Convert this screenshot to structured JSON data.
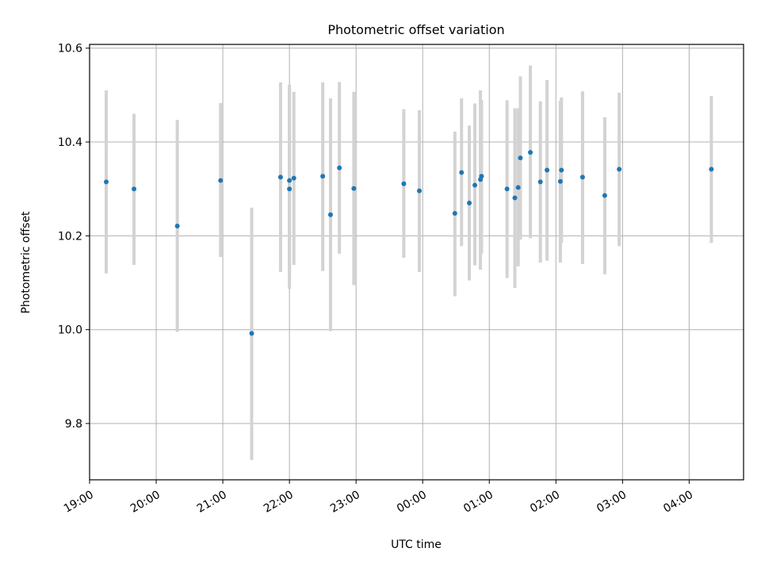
{
  "chart_data": {
    "type": "scatter",
    "title": "Photometric offset variation",
    "xlabel": "UTC time",
    "ylabel": "Photometric offset",
    "ylim": [
      9.68,
      10.608
    ],
    "xlim": [
      "19:00",
      "04:49"
    ],
    "grid": true,
    "x_tick_labels": [
      "19:00",
      "20:00",
      "21:00",
      "22:00",
      "23:00",
      "00:00",
      "01:00",
      "02:00",
      "03:00",
      "04:00"
    ],
    "y_ticks": [
      9.8,
      10.0,
      10.2,
      10.4,
      10.6
    ],
    "y_tick_labels": [
      "9.8",
      "10.0",
      "10.2",
      "10.4",
      "10.6"
    ],
    "colors": {
      "points": "#1f77b4",
      "errorbars": "#d3d3d3",
      "grid": "#b0b0b0"
    },
    "points": [
      {
        "x": "19:15",
        "y": 10.315,
        "lo": 10.12,
        "hi": 10.51
      },
      {
        "x": "19:40",
        "y": 10.3,
        "lo": 10.138,
        "hi": 10.46
      },
      {
        "x": "20:19",
        "y": 10.221,
        "lo": 9.995,
        "hi": 10.447
      },
      {
        "x": "20:58",
        "y": 10.318,
        "lo": 10.155,
        "hi": 10.483
      },
      {
        "x": "21:26",
        "y": 9.992,
        "lo": 9.722,
        "hi": 10.26
      },
      {
        "x": "21:52",
        "y": 10.325,
        "lo": 10.123,
        "hi": 10.527
      },
      {
        "x": "22:00",
        "y": 10.3,
        "lo": 10.087,
        "hi": 10.515
      },
      {
        "x": "22:00",
        "y": 10.318,
        "lo": 10.117,
        "hi": 10.522
      },
      {
        "x": "22:04",
        "y": 10.323,
        "lo": 10.138,
        "hi": 10.507
      },
      {
        "x": "22:30",
        "y": 10.327,
        "lo": 10.125,
        "hi": 10.527
      },
      {
        "x": "22:37",
        "y": 10.245,
        "lo": 9.997,
        "hi": 10.493
      },
      {
        "x": "22:45",
        "y": 10.345,
        "lo": 10.162,
        "hi": 10.528
      },
      {
        "x": "22:58",
        "y": 10.301,
        "lo": 10.095,
        "hi": 10.507
      },
      {
        "x": "23:43",
        "y": 10.311,
        "lo": 10.153,
        "hi": 10.47
      },
      {
        "x": "23:57",
        "y": 10.296,
        "lo": 10.123,
        "hi": 10.468
      },
      {
        "x": "00:29",
        "y": 10.248,
        "lo": 10.071,
        "hi": 10.422
      },
      {
        "x": "00:35",
        "y": 10.335,
        "lo": 10.178,
        "hi": 10.493
      },
      {
        "x": "00:42",
        "y": 10.27,
        "lo": 10.105,
        "hi": 10.435
      },
      {
        "x": "00:47",
        "y": 10.308,
        "lo": 10.137,
        "hi": 10.482
      },
      {
        "x": "00:52",
        "y": 10.32,
        "lo": 10.128,
        "hi": 10.51
      },
      {
        "x": "00:53",
        "y": 10.327,
        "lo": 10.162,
        "hi": 10.49
      },
      {
        "x": "01:16",
        "y": 10.3,
        "lo": 10.11,
        "hi": 10.489
      },
      {
        "x": "01:23",
        "y": 10.281,
        "lo": 10.089,
        "hi": 10.472
      },
      {
        "x": "01:26",
        "y": 10.303,
        "lo": 10.135,
        "hi": 10.472
      },
      {
        "x": "01:28",
        "y": 10.366,
        "lo": 10.192,
        "hi": 10.54
      },
      {
        "x": "01:37",
        "y": 10.378,
        "lo": 10.195,
        "hi": 10.563
      },
      {
        "x": "01:46",
        "y": 10.315,
        "lo": 10.143,
        "hi": 10.487
      },
      {
        "x": "01:52",
        "y": 10.34,
        "lo": 10.147,
        "hi": 10.532
      },
      {
        "x": "02:04",
        "y": 10.316,
        "lo": 10.143,
        "hi": 10.488
      },
      {
        "x": "02:05",
        "y": 10.34,
        "lo": 10.185,
        "hi": 10.495
      },
      {
        "x": "02:24",
        "y": 10.325,
        "lo": 10.14,
        "hi": 10.508
      },
      {
        "x": "02:44",
        "y": 10.286,
        "lo": 10.118,
        "hi": 10.453
      },
      {
        "x": "02:57",
        "y": 10.342,
        "lo": 10.178,
        "hi": 10.505
      },
      {
        "x": "04:20",
        "y": 10.342,
        "lo": 10.185,
        "hi": 10.498
      }
    ]
  }
}
